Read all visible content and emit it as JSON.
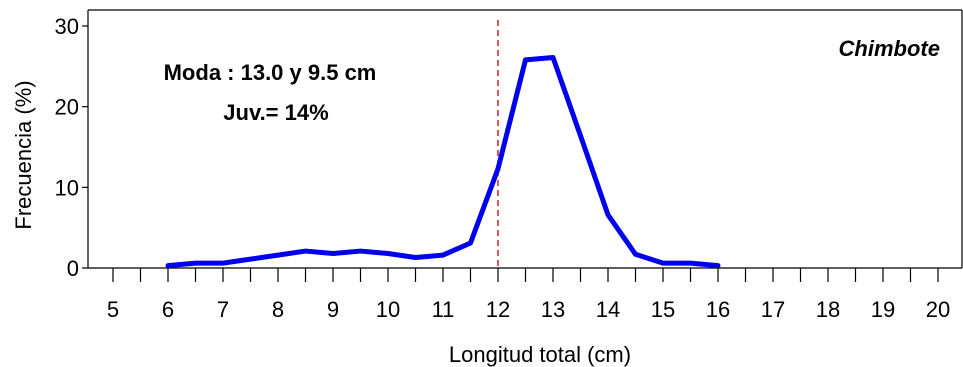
{
  "chart_data": {
    "type": "line",
    "xlabel": "Longitud total (cm)",
    "ylabel": "Frecuencia (%)",
    "xlim": [
      4.5,
      20.5
    ],
    "ylim": [
      0,
      30
    ],
    "x_ticks": [
      5,
      6,
      7,
      8,
      9,
      10,
      11,
      12,
      13,
      14,
      15,
      16,
      17,
      18,
      19,
      20
    ],
    "y_ticks": [
      0,
      10,
      20,
      30
    ],
    "grid": false,
    "series": [
      {
        "color": "#0000ee",
        "x": [
          6,
          6.5,
          7,
          7.5,
          8,
          8.5,
          9,
          9.5,
          10,
          10.5,
          11,
          11.5,
          12,
          12.5,
          13,
          13.5,
          14,
          14.5,
          15,
          15.5,
          16
        ],
        "y": [
          0.3,
          0.6,
          0.6,
          1.1,
          1.6,
          2.1,
          1.8,
          2.1,
          1.8,
          1.3,
          1.6,
          3.1,
          12.3,
          25.8,
          26.1,
          16.4,
          6.6,
          1.7,
          0.6,
          0.6,
          0.3
        ]
      }
    ],
    "reference_line": {
      "x": 12,
      "color": "#cc2222",
      "style": "dashed"
    },
    "annotations": {
      "moda": "Moda : 13.0 y 9.5 cm",
      "juv": "Juv.= 14%",
      "site": "Chimbote"
    }
  }
}
